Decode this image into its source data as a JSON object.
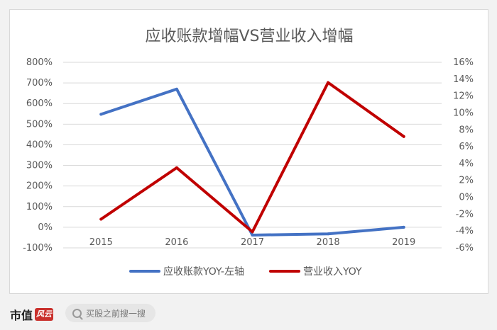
{
  "chart_data": {
    "type": "line",
    "title": "应收账款增幅VS营业收入增幅",
    "categories": [
      "2015",
      "2016",
      "2017",
      "2018",
      "2019"
    ],
    "y_left": {
      "ylim": [
        -100,
        800
      ],
      "ticks": [
        -100,
        0,
        100,
        200,
        300,
        400,
        500,
        600,
        700,
        800
      ],
      "tick_labels": [
        "-100%",
        "0%",
        "100%",
        "200%",
        "300%",
        "400%",
        "500%",
        "600%",
        "700%",
        "800%"
      ]
    },
    "y_right": {
      "ylim": [
        -6,
        16
      ],
      "ticks": [
        -6,
        -4,
        -2,
        0,
        2,
        4,
        6,
        8,
        10,
        12,
        14,
        16
      ],
      "tick_labels": [
        "-6%",
        "-4%",
        "-2%",
        "0%",
        "2%",
        "4%",
        "6%",
        "8%",
        "10%",
        "12%",
        "14%",
        "16%"
      ]
    },
    "series": [
      {
        "name": "应收账款YOY-左轴",
        "axis": "left",
        "color": "#4472c4",
        "values": [
          548,
          670,
          -38,
          -32,
          0
        ]
      },
      {
        "name": "营业收入YOY",
        "axis": "right",
        "color": "#c00000",
        "values": [
          -2.6,
          3.5,
          -4.1,
          13.6,
          7.2
        ]
      }
    ],
    "grid": true,
    "legend_position": "bottom"
  },
  "footer": {
    "brand": "市值",
    "brand_mark": "风云",
    "search_placeholder": "买股之前搜一搜"
  }
}
